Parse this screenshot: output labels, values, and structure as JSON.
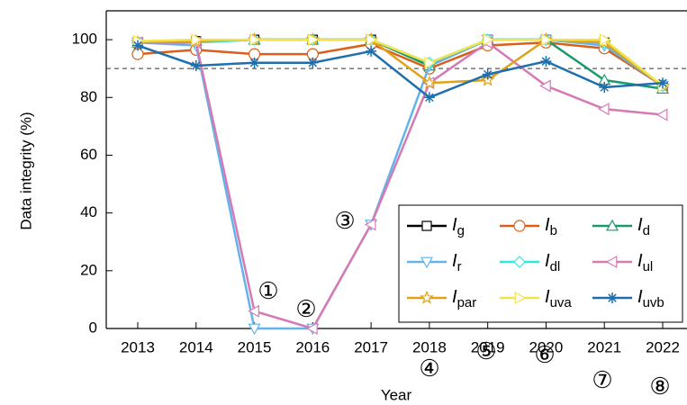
{
  "chart_data": {
    "type": "line",
    "x_label": "Year",
    "y_label": "Data integrity (%)",
    "categories": [
      "2013",
      "2014",
      "2015",
      "2016",
      "2017",
      "2018",
      "2019",
      "2020",
      "2021",
      "2022"
    ],
    "ylim": [
      0,
      110
    ],
    "yticks": [
      0,
      20,
      40,
      60,
      80,
      100
    ],
    "hline": 90,
    "annotations": [
      "①",
      "②",
      "③",
      "④",
      "⑤",
      "⑥",
      "⑦",
      "⑧"
    ],
    "series": [
      {
        "name": "Ig",
        "color": "#000000",
        "marker": "square",
        "values": [
          99,
          99.5,
          100,
          100,
          100,
          91,
          100,
          100,
          99,
          84
        ]
      },
      {
        "name": "Ib",
        "color": "#d95f1a",
        "marker": "circle",
        "values": [
          95,
          96.5,
          95,
          95,
          98.5,
          90,
          98,
          99,
          97,
          84
        ]
      },
      {
        "name": "Id",
        "color": "#1a9a6c",
        "marker": "triangle-up",
        "values": [
          99,
          99.5,
          100,
          100,
          100,
          91,
          100,
          100,
          86,
          83
        ]
      },
      {
        "name": "Ir",
        "color": "#62b4ea",
        "marker": "triangle-down",
        "values": [
          99,
          98,
          0,
          0,
          36,
          91,
          100,
          100,
          98,
          84
        ]
      },
      {
        "name": "Idl",
        "color": "#33e6e6",
        "marker": "diamond",
        "values": [
          99,
          99,
          100,
          100,
          100,
          92,
          100,
          100,
          99,
          84
        ]
      },
      {
        "name": "Iul",
        "color": "#d67ab5",
        "marker": "triangle-left",
        "values": [
          99,
          99,
          6,
          0,
          36,
          85,
          99,
          84,
          76,
          74
        ]
      },
      {
        "name": "Ipar",
        "color": "#e0a21c",
        "marker": "star",
        "values": [
          99,
          99.5,
          100,
          100,
          100,
          85,
          86,
          100,
          99,
          84
        ]
      },
      {
        "name": "Iuva",
        "color": "#f3e34a",
        "marker": "triangle-right",
        "values": [
          99.5,
          100,
          100,
          100,
          100,
          92,
          100,
          100,
          100,
          84
        ]
      },
      {
        "name": "Iuvb",
        "color": "#1f6fae",
        "marker": "asterisk",
        "values": [
          98,
          91,
          92,
          92,
          96,
          80,
          88,
          92.5,
          83.5,
          85
        ]
      }
    ]
  }
}
